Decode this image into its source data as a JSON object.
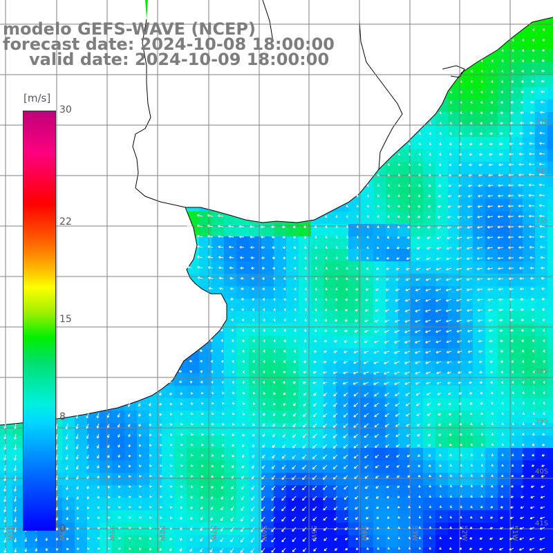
{
  "title": {
    "line1": "modelo GEFS-WAVE (NCEP)",
    "line2": "forecast date: 2024-10-08 18:00:00",
    "line3": "valid date: 2024-10-09 18:00:00"
  },
  "colorbar": {
    "unit": "[m/s]",
    "min": 0,
    "max": 30,
    "ticks": [
      "30",
      "22",
      "15",
      "8",
      "0"
    ],
    "tick_values": [
      30,
      22,
      15,
      8,
      0
    ]
  },
  "lat_labels": [
    "33S",
    "34S",
    "35S",
    "38S",
    "39S",
    "40S",
    "41S"
  ],
  "lon_labels": [
    "61W",
    "60W",
    "59W",
    "58W",
    "57W",
    "56W",
    "55W",
    "54W",
    "53W",
    "52W",
    "51W"
  ],
  "colors": {
    "land": "#ffffff",
    "coast": "#000000",
    "grid": "#7f7f7f",
    "arrows": "#ffffff",
    "title_text": "#7d7d7d"
  }
}
